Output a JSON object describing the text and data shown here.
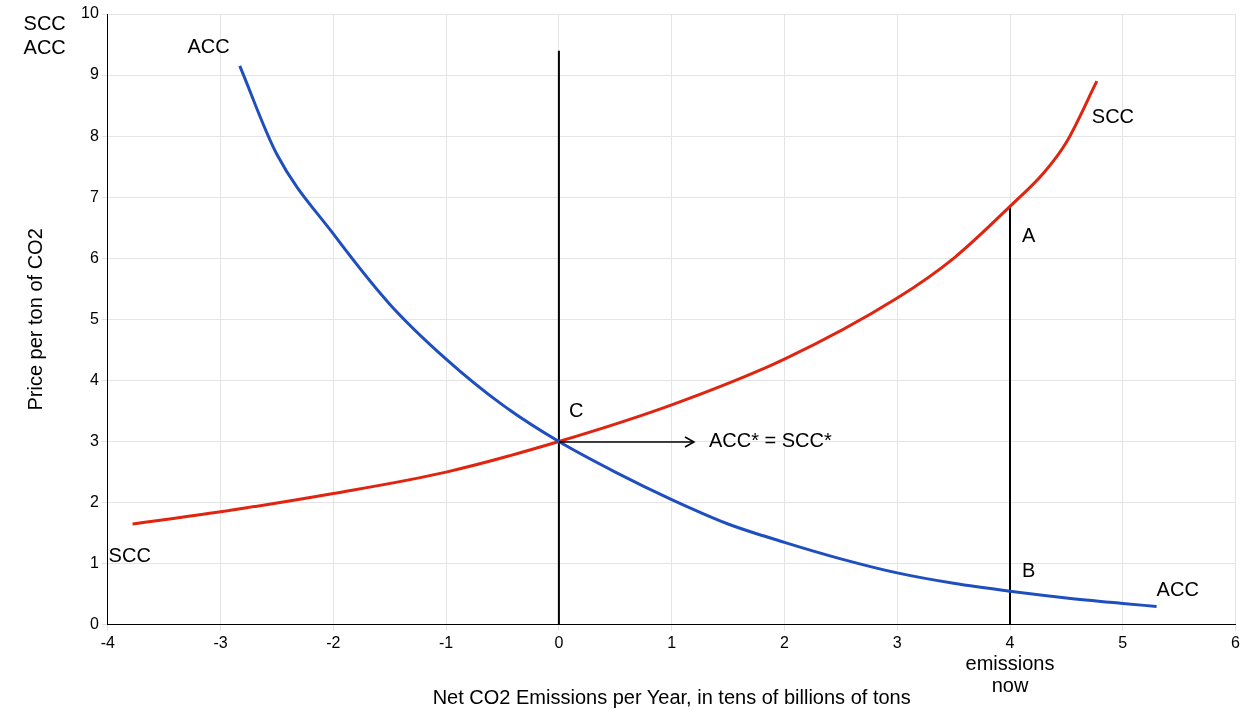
{
  "chart_data": {
    "type": "line",
    "xlabel": "Net CO2 Emissions per Year, in tens of billions of tons",
    "ylabel": "Price per ton of CO2",
    "xlim": [
      -4,
      6
    ],
    "xticks": [
      -4,
      -3,
      -2,
      -1,
      0,
      1,
      2,
      3,
      4,
      5,
      6
    ],
    "ylim": [
      0,
      10
    ],
    "yticks": [
      0,
      1,
      2,
      3,
      4,
      5,
      6,
      7,
      8,
      9,
      10
    ],
    "grid": true,
    "series": [
      {
        "name": "ACC",
        "color": "#1f4fbf",
        "x": [
          -2.83,
          -2.5,
          -2,
          -1.5,
          -1,
          -0.5,
          0,
          0.5,
          1,
          1.5,
          2,
          2.5,
          3,
          3.5,
          4,
          4.5,
          5,
          5.3
        ],
        "values": [
          9.15,
          7.7,
          6.4,
          5.25,
          4.35,
          3.6,
          3,
          2.5,
          2.05,
          1.65,
          1.35,
          1.08,
          0.85,
          0.68,
          0.55,
          0.44,
          0.35,
          0.3
        ]
      },
      {
        "name": "SCC",
        "color": "#e0240f",
        "x": [
          -3.78,
          -3,
          -2,
          -1,
          0,
          1,
          2,
          3,
          3.5,
          4,
          4.3,
          4.5,
          4.77
        ],
        "values": [
          1.65,
          1.85,
          2.15,
          2.5,
          3,
          3.6,
          4.35,
          5.35,
          6,
          6.85,
          7.4,
          7.9,
          8.9
        ]
      },
      {
        "color": "#000000",
        "x": [
          0,
          0
        ],
        "values": [
          0,
          9.4
        ]
      },
      {
        "color": "#000000",
        "x": [
          4,
          4
        ],
        "values": [
          0,
          6.85
        ]
      }
    ],
    "annotations": [
      "SCC",
      "ACC",
      "C",
      {
        "text": "ACC* = SCC*",
        "x": 0,
        "y": 3
      },
      "A",
      "B",
      "emissions now"
    ]
  }
}
